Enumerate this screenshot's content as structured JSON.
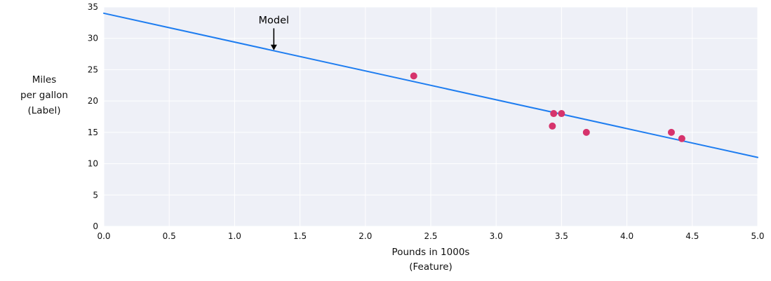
{
  "chart_data": {
    "type": "scatter",
    "title": "",
    "xlabel": "Pounds in 1000s\n(Feature)",
    "ylabel": "Miles\nper gallon\n(Label)",
    "xlim": [
      0,
      5
    ],
    "ylim": [
      0,
      35
    ],
    "grid": true,
    "x_tick_values": [
      0.0,
      0.5,
      1.0,
      1.5,
      2.0,
      2.5,
      3.0,
      3.5,
      4.0,
      4.5,
      5.0
    ],
    "x_tick_labels": [
      "0.0",
      "0.5",
      "1.0",
      "1.5",
      "2.0",
      "2.5",
      "3.0",
      "3.5",
      "4.0",
      "4.5",
      "5.0"
    ],
    "y_tick_values": [
      0,
      5,
      10,
      15,
      20,
      25,
      30,
      35
    ],
    "y_tick_labels": [
      "0",
      "5",
      "10",
      "15",
      "20",
      "25",
      "30",
      "35"
    ],
    "points": [
      [
        2.37,
        24
      ],
      [
        3.43,
        16
      ],
      [
        3.44,
        18
      ],
      [
        3.5,
        18
      ],
      [
        3.69,
        15
      ],
      [
        4.34,
        15
      ],
      [
        4.42,
        14
      ]
    ],
    "line": {
      "name": "Model",
      "points": [
        [
          0,
          34
        ],
        [
          5,
          11
        ]
      ]
    },
    "annotation": {
      "text": "Model",
      "x": 1.3,
      "label_y": 32.4,
      "arrow_start_y": 31.6,
      "arrow_end_y": 28.1
    },
    "colors": {
      "point": "#d6336c",
      "line": "#1e7df0",
      "plot_bg": "#eef0f7",
      "grid": "#ffffff",
      "text": "#111111",
      "annotation": "#000000"
    }
  }
}
